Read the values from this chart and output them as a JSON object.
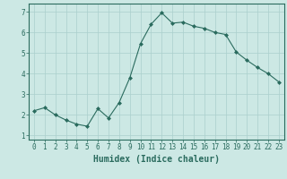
{
  "x": [
    0,
    1,
    2,
    3,
    4,
    5,
    6,
    7,
    8,
    9,
    10,
    11,
    12,
    13,
    14,
    15,
    16,
    17,
    18,
    19,
    20,
    21,
    22,
    23
  ],
  "y": [
    2.2,
    2.35,
    2.0,
    1.75,
    1.55,
    1.45,
    2.3,
    1.85,
    2.6,
    3.8,
    5.45,
    6.4,
    6.95,
    6.45,
    6.5,
    6.3,
    6.2,
    6.0,
    5.9,
    5.05,
    4.65,
    4.3,
    4.0,
    3.6
  ],
  "line_color": "#2a6b5e",
  "marker": "D",
  "marker_size": 2.0,
  "bg_color": "#cce8e4",
  "grid_color": "#aacfcc",
  "xlabel": "Humidex (Indice chaleur)",
  "xlim": [
    -0.5,
    23.5
  ],
  "ylim": [
    0.8,
    7.4
  ],
  "yticks": [
    1,
    2,
    3,
    4,
    5,
    6,
    7
  ],
  "xticks": [
    0,
    1,
    2,
    3,
    4,
    5,
    6,
    7,
    8,
    9,
    10,
    11,
    12,
    13,
    14,
    15,
    16,
    17,
    18,
    19,
    20,
    21,
    22,
    23
  ],
  "tick_label_fontsize": 5.5,
  "xlabel_fontsize": 7.0,
  "spine_color": "#2a6b5e",
  "linewidth": 0.8
}
